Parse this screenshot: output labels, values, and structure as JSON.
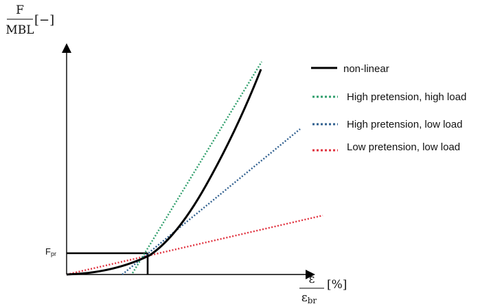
{
  "y_axis_label": {
    "numerator": "F",
    "denominator": "MBL",
    "unit": "[−]"
  },
  "x_axis_label": {
    "numerator": "ε",
    "denominator_base": "ε",
    "denominator_sub": "br",
    "unit": "[%]"
  },
  "marker_label": {
    "base": "F",
    "sub": "pr"
  },
  "legend": [
    {
      "id": "nonlinear",
      "label": "non-linear",
      "color": "#000000",
      "dash": "solid"
    },
    {
      "id": "hp_hl",
      "label": "High pretension, high load",
      "color": "#2e9e6b",
      "dash": "dotted"
    },
    {
      "id": "hp_ll",
      "label": "High pretension, low load",
      "color": "#2f5f8f",
      "dash": "dotted"
    },
    {
      "id": "lp_ll",
      "label": "Low pretension, low load",
      "color": "#e0303d",
      "dash": "dotted"
    }
  ]
}
